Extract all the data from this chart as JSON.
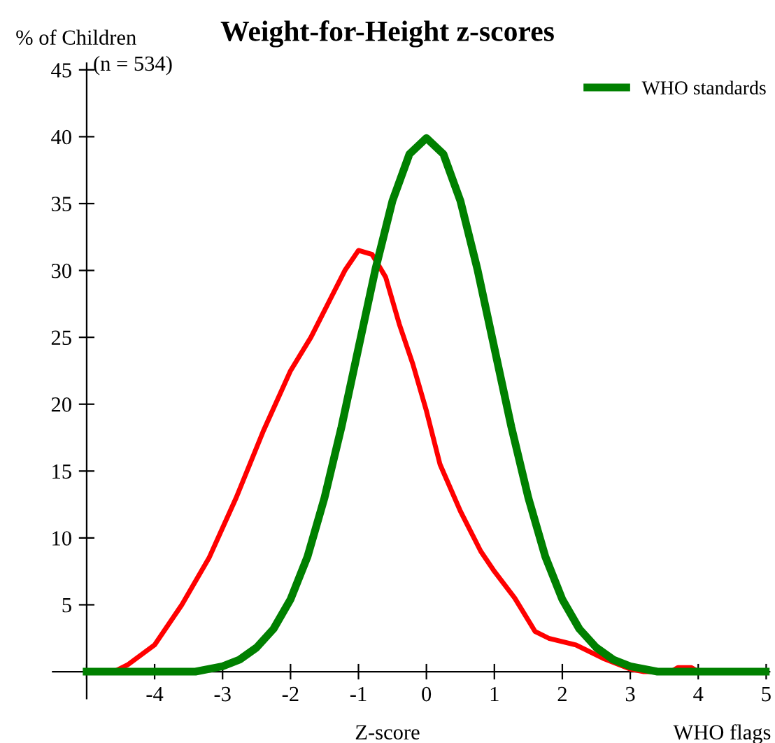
{
  "chart_data": {
    "type": "line",
    "title": "Weight-for-Height z-scores",
    "ylabel": "% of Children",
    "xlabel": "Z-score",
    "annotations": [
      "(n = 534)",
      "WHO flags"
    ],
    "xlim": [
      -5.5,
      5.05
    ],
    "ylim": [
      -2,
      45.5
    ],
    "xticks": [
      {
        "value": -5,
        "label": null
      },
      -4,
      -3,
      -2,
      -1,
      0,
      1,
      2,
      3,
      4,
      5
    ],
    "yticks": [
      5,
      10,
      15,
      20,
      25,
      30,
      35,
      40,
      45
    ],
    "legend": "top right",
    "grid": false,
    "marker": "none",
    "line_style": "solid",
    "series": [
      {
        "color": "#ff0000",
        "x": [
          -4.6,
          -4.4,
          -4.0,
          -3.6,
          -3.2,
          -2.8,
          -2.4,
          -2.0,
          -1.7,
          -1.4,
          -1.2,
          -1.0,
          -0.8,
          -0.6,
          -0.4,
          -0.2,
          0.0,
          0.2,
          0.5,
          0.8,
          1.0,
          1.3,
          1.6,
          1.8,
          2.2,
          2.6,
          3.0,
          3.2,
          3.6,
          3.7,
          3.9,
          4.0
        ],
        "values": [
          0,
          0.5,
          2,
          5,
          8.5,
          13,
          18,
          22.5,
          25,
          28,
          30,
          31.5,
          31.2,
          29.5,
          26,
          23,
          19.5,
          15.5,
          12,
          9,
          7.5,
          5.5,
          3,
          2.5,
          2,
          1,
          0.2,
          0,
          0,
          0.3,
          0.3,
          0
        ]
      },
      {
        "name": "WHO standards",
        "color": "#008000",
        "x": [
          -5,
          -3.4,
          -3,
          -2.75,
          -2.5,
          -2.25,
          -2,
          -1.75,
          -1.5,
          -1.25,
          -1,
          -0.75,
          -0.5,
          -0.25,
          0,
          0.25,
          0.5,
          0.75,
          1,
          1.25,
          1.5,
          1.75,
          2,
          2.25,
          2.5,
          2.75,
          3,
          3.4,
          5
        ],
        "values": [
          0,
          0,
          0.4,
          0.9,
          1.8,
          3.2,
          5.4,
          8.6,
          13,
          18.3,
          24.2,
          30.1,
          35.2,
          38.7,
          39.9,
          38.7,
          35.2,
          30.1,
          24.2,
          18.3,
          13,
          8.6,
          5.4,
          3.2,
          1.8,
          0.9,
          0.4,
          0,
          0
        ]
      }
    ]
  }
}
